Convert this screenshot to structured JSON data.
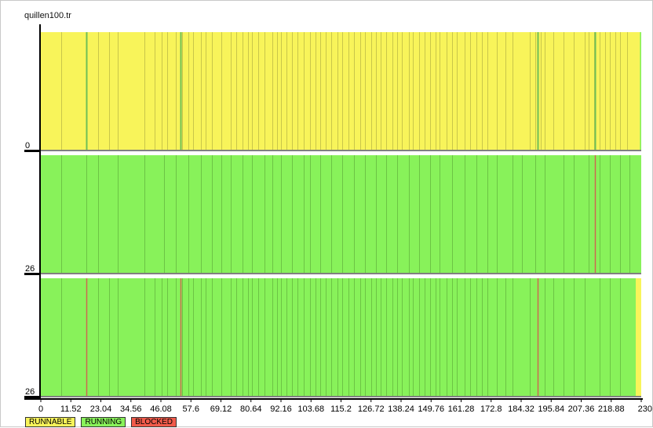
{
  "window_title": "quillen100.tr",
  "colors": {
    "runnable": "#f8f45a",
    "running": "#88f25a",
    "blocked": "#f05a4a",
    "runnable_stripe": "#c9c64a",
    "running_stripe": "#6cc445",
    "green_mark": "#6fbf55",
    "red_mark": "#cc6a50",
    "axis": "#000000"
  },
  "legend": [
    {
      "label": "RUNNABLE",
      "color": "#f8f45a"
    },
    {
      "label": "RUNNING",
      "color": "#88f25a"
    },
    {
      "label": "BLOCKED",
      "color": "#f05a4a"
    }
  ],
  "chart_data": {
    "type": "timeline",
    "title": "quillen100.tr",
    "xlim": [
      0,
      230.4
    ],
    "x_ticks": [
      "0",
      "11.52",
      "23.04",
      "34.56",
      "46.08",
      "57.6",
      "69.12",
      "80.64",
      "92.16",
      "103.68",
      "115.2",
      "126.72",
      "138.24",
      "149.76",
      "161.28",
      "172.8",
      "184.32",
      "195.84",
      "207.36",
      "218.88",
      "230"
    ],
    "rows": [
      {
        "label": "0",
        "base_state": "RUNNABLE",
        "stripes": [
          7.7,
          17.4,
          21.9,
          26.2,
          29.6,
          39.9,
          43.8,
          46.4,
          48.4,
          51.8,
          54.2,
          56.5,
          58.4,
          61.5,
          63.3,
          65.6,
          69.3,
          72.8,
          75.1,
          77.3,
          79.4,
          81.1,
          83.5,
          85.8,
          88.7,
          90.6,
          92.3,
          94.4,
          96.5,
          98.6,
          100.9,
          103.3,
          105.4,
          107.2,
          109.2,
          111.5,
          113.7,
          115.7,
          118.2,
          120.3,
          122.6,
          124.5,
          126.7,
          128.7,
          130.4,
          132.6,
          134.8,
          136.8,
          138.6,
          141.2,
          142.8,
          145.2,
          147.2,
          149.3,
          151.6,
          153.1,
          155.6,
          157.7,
          159.5,
          162.5,
          164.6,
          167.3,
          169.4,
          171.4,
          175.0,
          178.3,
          181.0,
          187.5,
          189.7,
          191.9,
          193.5,
          196.7,
          200.7,
          204.4,
          208.7,
          210.1,
          212.3,
          214.5,
          216.4,
          218.5,
          220.6,
          222.4,
          224.9
        ],
        "green_marks": [
          17.4,
          53.7,
          190.5,
          212.7
        ],
        "red_marks": [],
        "tail": {
          "state": "RUNNING",
          "from": 229.9
        }
      },
      {
        "label": "26",
        "base_state": "RUNNING",
        "stripes": [
          7.7,
          17.4,
          21.9,
          29.6,
          39.9,
          47.2,
          51.8,
          56.5,
          61.5,
          65.6,
          69.3,
          72.8,
          77.3,
          81.1,
          85.8,
          88.7,
          92.3,
          96.5,
          100.9,
          103.3,
          107.2,
          111.5,
          115.7,
          120.3,
          124.5,
          128.7,
          132.6,
          136.8,
          141.2,
          145.2,
          149.3,
          153.1,
          157.7,
          162.5,
          167.3,
          171.4,
          175.0,
          181.0,
          184.5,
          189.7,
          193.5,
          200.7,
          204.4,
          210.1,
          214.5,
          218.5,
          222.4,
          226.0
        ],
        "green_marks": [],
        "red_marks": [
          212.7
        ],
        "tail": null
      },
      {
        "label": "26",
        "base_state": "RUNNING",
        "stripes": [
          7.7,
          21.9,
          26.2,
          29.6,
          39.9,
          43.8,
          46.4,
          48.4,
          51.8,
          54.2,
          56.5,
          58.4,
          61.5,
          63.3,
          65.6,
          69.3,
          72.8,
          75.1,
          77.3,
          79.4,
          81.1,
          83.5,
          85.8,
          88.7,
          90.6,
          92.3,
          94.4,
          96.5,
          98.6,
          100.9,
          103.3,
          105.4,
          107.2,
          109.2,
          111.5,
          113.7,
          115.7,
          118.2,
          120.3,
          122.6,
          124.5,
          126.7,
          128.7,
          130.4,
          132.6,
          134.8,
          136.8,
          138.6,
          141.2,
          142.8,
          145.2,
          147.2,
          149.3,
          151.6,
          153.1,
          155.6,
          157.7,
          159.5,
          162.5,
          164.6,
          167.3,
          169.4,
          171.4,
          175.0,
          178.3,
          181.0,
          187.5,
          193.5,
          196.7,
          200.7,
          204.4,
          208.7,
          214.5,
          218.5,
          222.4
        ],
        "green_marks": [],
        "red_marks": [
          17.4,
          53.7,
          190.5
        ],
        "tail": {
          "state": "RUNNABLE",
          "from": 228.3
        }
      }
    ]
  }
}
